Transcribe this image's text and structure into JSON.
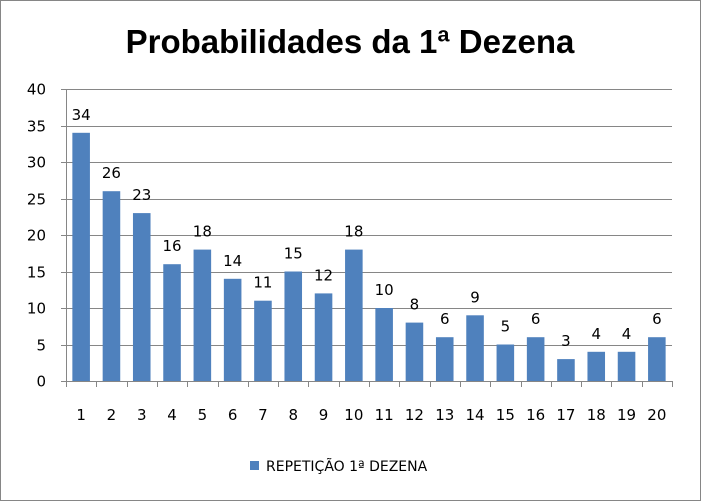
{
  "chart_data": {
    "type": "bar",
    "title": "Probabilidades da 1ª Dezena",
    "categories": [
      "1",
      "2",
      "3",
      "4",
      "5",
      "6",
      "7",
      "8",
      "9",
      "10",
      "11",
      "12",
      "13",
      "14",
      "15",
      "16",
      "17",
      "18",
      "19",
      "20"
    ],
    "series": [
      {
        "name": "REPETIÇÃO 1ª DEZENA",
        "values": [
          34,
          26,
          23,
          16,
          18,
          14,
          11,
          15,
          12,
          18,
          10,
          8,
          6,
          9,
          5,
          6,
          3,
          4,
          4,
          6
        ],
        "color": "#4F81BD"
      }
    ],
    "ylim": [
      0,
      40
    ],
    "yticks": [
      "0",
      "5",
      "10",
      "15",
      "20",
      "25",
      "30",
      "35",
      "40"
    ],
    "grid": true,
    "legend_position": "bottom",
    "data_labels": true,
    "gridline_color": "#868686",
    "axis_color": "#868686"
  }
}
